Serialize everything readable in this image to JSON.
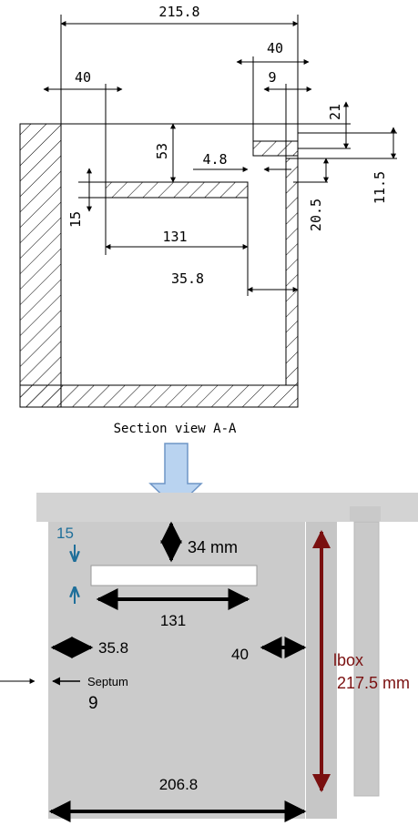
{
  "drawing": {
    "dims": {
      "overall_width": "215.8",
      "top_right_40": "40",
      "left_40": "40",
      "septum_9": "9",
      "gap_21": "21",
      "depth_53": "53",
      "slot_4_8": "4.8",
      "right_11_5": "11.5",
      "thick_15": "15",
      "right_20_5": "20.5",
      "slot_131": "131",
      "offset_35_8": "35.8"
    },
    "caption": "Section view A-A"
  },
  "photo": {
    "label_15": "15",
    "label_34mm": "34 mm",
    "label_131": "131",
    "label_35_8": "35.8",
    "label_40": "40",
    "septum_label": "Septum",
    "septum_value": "9",
    "lbox_label": "lbox",
    "lbox_value": "217.5 mm",
    "bottom_width": "206.8"
  },
  "colors": {
    "box_gray": "#cbcbcb",
    "top_plate_gray": "#d3d3d3",
    "lbox_red": "#7a1010",
    "arrow_blue": "#1f6f9a",
    "down_arrow_fill": "#b9d3f0",
    "down_arrow_stroke": "#6e95c6"
  }
}
